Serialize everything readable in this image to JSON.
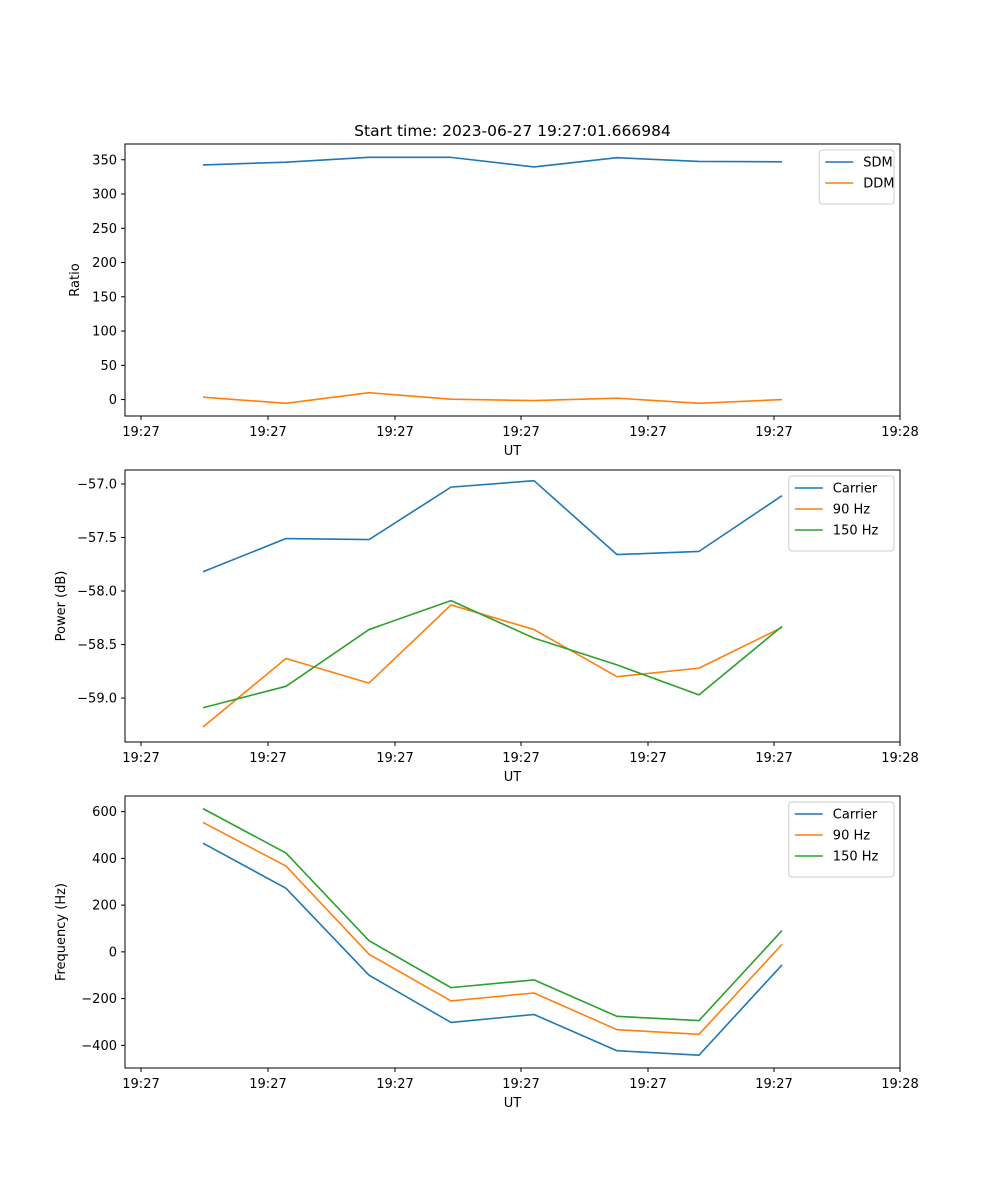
{
  "colors": {
    "blue": "#1f77b4",
    "orange": "#ff7f0e",
    "green": "#2ca02c"
  },
  "chart_data": [
    {
      "type": "line",
      "title": "Start time: 2023-06-27 19:27:01.666984",
      "xlabel": "UT",
      "ylabel": "Ratio",
      "x_tick_labels": [
        "19:27",
        "19:27",
        "19:27",
        "19:27",
        "19:27",
        "19:27",
        "19:28"
      ],
      "y_ticks": [
        0,
        50,
        100,
        150,
        200,
        250,
        300,
        350
      ],
      "ylim": [
        -24,
        373
      ],
      "legend_position": "upper right",
      "series": [
        {
          "name": "SDM",
          "color": "#1f77b4",
          "values": [
            342.5,
            346.5,
            353.5,
            353.5,
            339.5,
            353,
            347.5,
            347
          ]
        },
        {
          "name": "DDM",
          "color": "#ff7f0e",
          "values": [
            3.5,
            -5.5,
            10,
            0.5,
            -1.5,
            2,
            -5.5,
            0
          ]
        }
      ]
    },
    {
      "type": "line",
      "title": "",
      "xlabel": "UT",
      "ylabel": "Power (dB)",
      "x_tick_labels": [
        "19:27",
        "19:27",
        "19:27",
        "19:27",
        "19:27",
        "19:27",
        "19:28"
      ],
      "y_ticks": [
        -59.0,
        -58.5,
        -58.0,
        -57.5,
        -57.0
      ],
      "y_tick_labels": [
        "−59.0",
        "−58.5",
        "−58.0",
        "−57.5",
        "−57.0"
      ],
      "ylim": [
        -59.41,
        -56.87
      ],
      "legend_position": "upper right",
      "series": [
        {
          "name": "Carrier",
          "color": "#1f77b4",
          "values": [
            -57.82,
            -57.51,
            -57.52,
            -57.03,
            -56.97,
            -57.66,
            -57.63,
            -57.11
          ]
        },
        {
          "name": "90 Hz",
          "color": "#ff7f0e",
          "values": [
            -59.27,
            -58.63,
            -58.86,
            -58.13,
            -58.36,
            -58.8,
            -58.72,
            -58.34
          ]
        },
        {
          "name": "150 Hz",
          "color": "#2ca02c",
          "values": [
            -59.09,
            -58.89,
            -58.36,
            -58.09,
            -58.44,
            -58.69,
            -58.97,
            -58.33
          ]
        }
      ]
    },
    {
      "type": "line",
      "title": "",
      "xlabel": "UT",
      "ylabel": "Frequency (Hz)",
      "x_tick_labels": [
        "19:27",
        "19:27",
        "19:27",
        "19:27",
        "19:27",
        "19:27",
        "19:28"
      ],
      "y_ticks": [
        -400,
        -200,
        0,
        200,
        400,
        600
      ],
      "y_tick_labels": [
        "−400",
        "−200",
        "0",
        "200",
        "400",
        "600"
      ],
      "ylim": [
        -497,
        667
      ],
      "legend_position": "upper right",
      "series": [
        {
          "name": "Carrier",
          "color": "#1f77b4",
          "values": [
            465,
            272,
            -100,
            -302,
            -268,
            -423,
            -442,
            -56
          ]
        },
        {
          "name": "90 Hz",
          "color": "#ff7f0e",
          "values": [
            554,
            367,
            -10,
            -210,
            -176,
            -333,
            -353,
            32
          ]
        },
        {
          "name": "150 Hz",
          "color": "#2ca02c",
          "values": [
            613,
            423,
            48,
            -153,
            -120,
            -276,
            -294,
            91
          ]
        }
      ]
    }
  ]
}
